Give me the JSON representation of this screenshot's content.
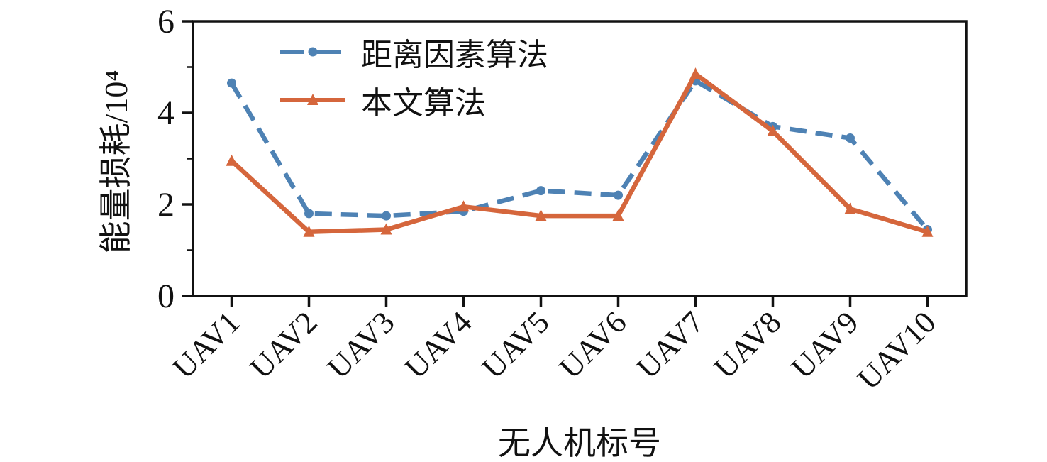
{
  "chart_data": {
    "type": "line",
    "categories": [
      "UAV1",
      "UAV2",
      "UAV3",
      "UAV4",
      "UAV5",
      "UAV6",
      "UAV7",
      "UAV8",
      "UAV9",
      "UAV10"
    ],
    "series": [
      {
        "name": "距离因素算法",
        "values": [
          4.65,
          1.8,
          1.75,
          1.85,
          2.3,
          2.2,
          4.7,
          3.7,
          3.45,
          1.45
        ],
        "color": "#4e82b4",
        "line_style": "dashed",
        "marker": "circle"
      },
      {
        "name": "本文算法",
        "values": [
          2.95,
          1.4,
          1.45,
          1.95,
          1.75,
          1.75,
          4.85,
          3.6,
          1.9,
          1.4
        ],
        "color": "#d5663c",
        "line_style": "solid",
        "marker": "triangle"
      }
    ],
    "title": "",
    "xlabel": "无人机标号",
    "ylabel": "能量损耗/10⁴",
    "ylim": [
      0,
      6
    ],
    "yticks": [
      0,
      2,
      4,
      6
    ],
    "yticks_minor": [
      1,
      3,
      5
    ],
    "legend_position": "top-left",
    "grid": false,
    "axis_color": "#111111"
  }
}
